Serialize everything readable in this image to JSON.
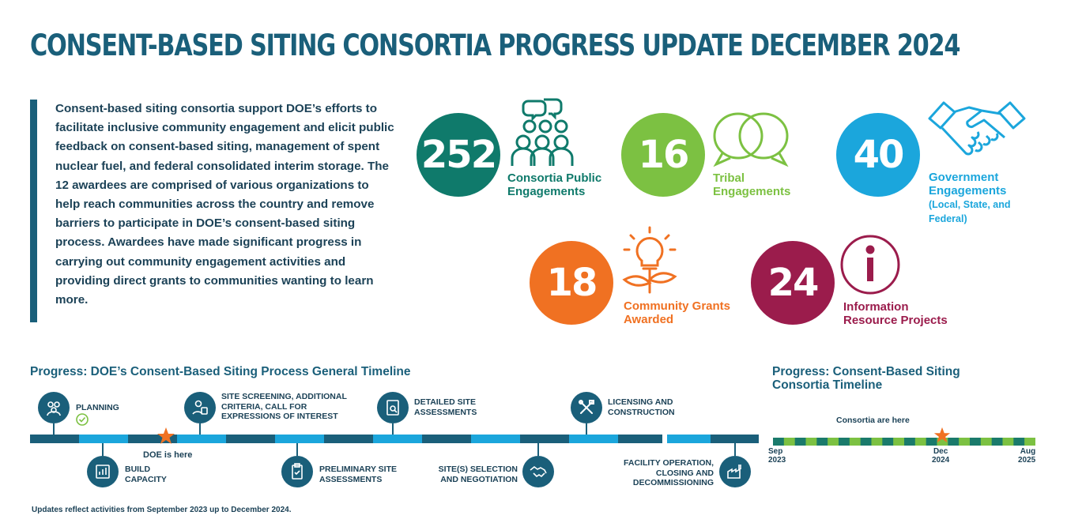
{
  "title": "CONSENT-BASED SITING CONSORTIA PROGRESS UPDATE DECEMBER 2024",
  "intro": "Consent-based siting consortia support DOE’s efforts to facilitate inclusive community engagement and elicit public feedback on consent-based siting, management of spent nuclear fuel, and federal consolidated interim storage. The 12 awardees are comprised of various organizations to help reach communities across the country and remove barriers to participate in DOE’s consent-based siting process. Awardees have made significant progress in carrying out community engagement activities and providing direct grants to communities wanting to learn more.",
  "stats": {
    "public": {
      "value": "252",
      "label_line1": "Consortia Public",
      "label_line2": "Engagements",
      "color": "#0f7a6b",
      "icon": "people-chat-icon"
    },
    "tribal": {
      "value": "16",
      "label_line1": "Tribal",
      "label_line2": "Engagements",
      "color": "#7cc142",
      "icon": "speech-bubbles-icon"
    },
    "government": {
      "value": "40",
      "label_line1": "Government",
      "label_line2": "Engagements",
      "label_sub1": "(Local, State, and",
      "label_sub2": "Federal)",
      "color": "#1ba6dc",
      "icon": "handshake-icon"
    },
    "grants": {
      "value": "18",
      "label_line1": "Community Grants",
      "label_line2": "Awarded",
      "color": "#f07122",
      "icon": "lightbulb-plant-icon"
    },
    "info": {
      "value": "24",
      "label_line1": "Information",
      "label_line2": "Resource Projects",
      "color": "#9b1c4c",
      "icon": "info-icon"
    }
  },
  "timeline": {
    "heading": "Progress: DOE’s Consent-Based Siting Process General Timeline",
    "marker_label": "DOE is here",
    "milestones": {
      "planning": "PLANNING",
      "screening_1": "SITE SCREENING, ADDITIONAL",
      "screening_2": "CRITERIA, CALL FOR",
      "screening_3": "EXPRESSIONS OF INTEREST",
      "detailed_1": "DETAILED SITE",
      "detailed_2": "ASSESSMENTS",
      "licensing_1": "LICENSING AND",
      "licensing_2": "CONSTRUCTION",
      "build_1": "BUILD",
      "build_2": "CAPACITY",
      "prelim_1": "PRELIMINARY SITE",
      "prelim_2": "ASSESSMENTS",
      "selection_1": "SITE(S) SELECTION",
      "selection_2": "AND NEGOTIATION",
      "facility_1": "FACILITY OPERATION,",
      "facility_2": "CLOSING AND",
      "facility_3": "DECOMMISSIONING"
    }
  },
  "consortia_timeline": {
    "heading_1": "Progress: Consent-Based Siting",
    "heading_2": "Consortia Timeline",
    "marker_label": "Consortia are here",
    "ticks": [
      {
        "month": "Sep",
        "year": "2023"
      },
      {
        "month": "Dec",
        "year": "2024"
      },
      {
        "month": "Aug",
        "year": "2025"
      }
    ]
  },
  "footnote": "Updates reflect activities from September 2023 up to December 2024."
}
